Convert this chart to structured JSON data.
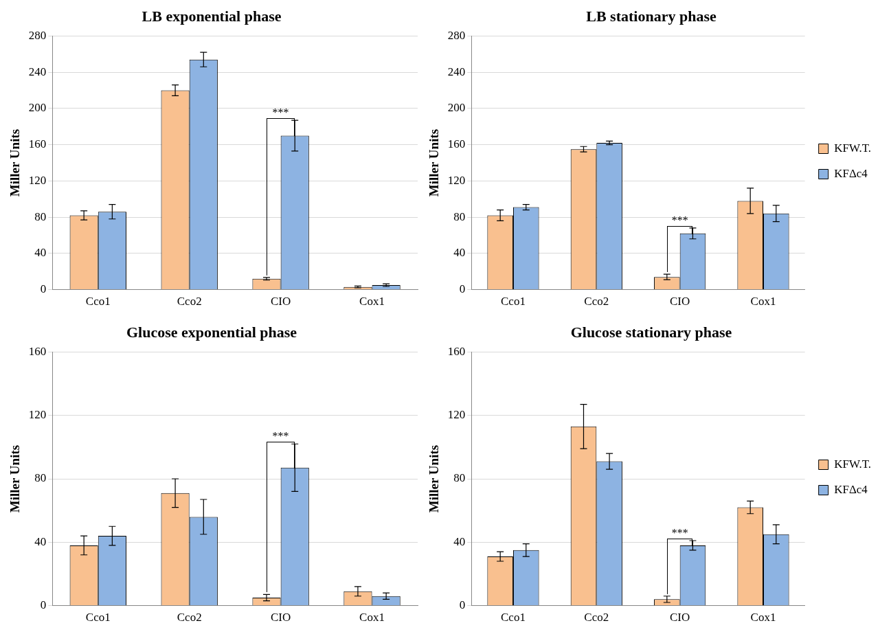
{
  "chart_data": [
    {
      "type": "bar",
      "title": "LB exponential phase",
      "ylabel": "Miller Units",
      "categories": [
        "Cco1",
        "Cco2",
        "CIO",
        "Cox1"
      ],
      "ylim": [
        0,
        280
      ],
      "yticks": [
        0,
        40,
        80,
        120,
        160,
        200,
        240,
        280
      ],
      "grid": "y",
      "annotations": [
        {
          "text": "***",
          "x": "CIO",
          "y": 170
        }
      ],
      "series": [
        {
          "color": "#f9c08f",
          "values": [
            82,
            220,
            12,
            3
          ],
          "errors": [
            5,
            6,
            1.5,
            1
          ]
        },
        {
          "color": "#8db3e2",
          "values": [
            86,
            254,
            170,
            5
          ],
          "errors": [
            8,
            8,
            17,
            1.5
          ]
        }
      ]
    },
    {
      "type": "bar",
      "title": "LB stationary phase",
      "ylabel": "Miller Units",
      "categories": [
        "Cco1",
        "Cco2",
        "CIO",
        "Cox1"
      ],
      "ylim": [
        0,
        280
      ],
      "yticks": [
        0,
        40,
        80,
        120,
        160,
        200,
        240,
        280
      ],
      "grid": "y",
      "legend": "right",
      "annotations": [
        {
          "text": "***",
          "x": "CIO",
          "y": 62
        }
      ],
      "series": [
        {
          "name": "KFW.T.",
          "color": "#f9c08f",
          "values": [
            82,
            155,
            14,
            98
          ],
          "errors": [
            6,
            3,
            3,
            14
          ]
        },
        {
          "name": "KFΔc4",
          "color": "#8db3e2",
          "values": [
            91,
            162,
            62,
            84
          ],
          "errors": [
            3,
            2,
            6,
            9
          ]
        }
      ]
    },
    {
      "type": "bar",
      "title": "Glucose exponential phase",
      "ylabel": "Miller Units",
      "categories": [
        "Cco1",
        "Cco2",
        "CIO",
        "Cox1"
      ],
      "ylim": [
        0,
        160
      ],
      "yticks": [
        0,
        40,
        80,
        120,
        160
      ],
      "grid": "y",
      "annotations": [
        {
          "text": "***",
          "x": "CIO",
          "y": 87
        }
      ],
      "series": [
        {
          "color": "#f9c08f",
          "values": [
            38,
            71,
            5,
            9
          ],
          "errors": [
            6,
            9,
            2,
            3
          ]
        },
        {
          "color": "#8db3e2",
          "values": [
            44,
            56,
            87,
            6
          ],
          "errors": [
            6,
            11,
            15,
            2
          ]
        }
      ]
    },
    {
      "type": "bar",
      "title": "Glucose stationary phase",
      "ylabel": "Miller Units",
      "categories": [
        "Cco1",
        "Cco2",
        "CIO",
        "Cox1"
      ],
      "ylim": [
        0,
        160
      ],
      "yticks": [
        0,
        40,
        80,
        120,
        160
      ],
      "grid": "y",
      "legend": "right",
      "annotations": [
        {
          "text": "***",
          "x": "CIO",
          "y": 38
        }
      ],
      "series": [
        {
          "name": "KFW.T.",
          "color": "#f9c08f",
          "values": [
            31,
            113,
            4,
            62
          ],
          "errors": [
            3,
            14,
            2,
            4
          ]
        },
        {
          "name": "KFΔc4",
          "color": "#8db3e2",
          "values": [
            35,
            91,
            38,
            45
          ],
          "errors": [
            4,
            5,
            3,
            6
          ]
        }
      ]
    }
  ]
}
